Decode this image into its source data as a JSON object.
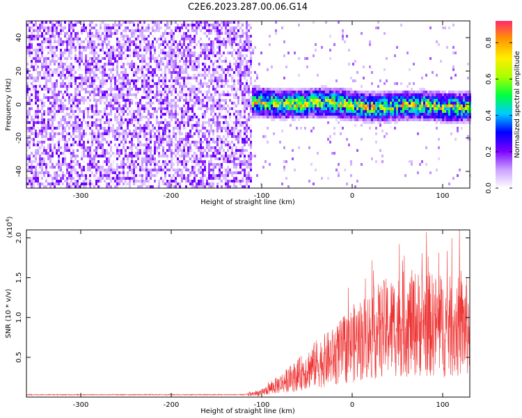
{
  "title": "C2E6.2023.287.00.06.G14",
  "chart_data": [
    {
      "type": "heatmap",
      "name": "spectrogram",
      "xlabel": "Height of straight line (km)",
      "ylabel": "Frequency (Hz)",
      "xlim": [
        -360,
        130
      ],
      "ylim": [
        -50,
        50
      ],
      "xticks": [
        -300,
        -200,
        -100,
        0,
        100
      ],
      "xtick_labels": [
        "-300",
        "-200",
        "-100",
        "0",
        "100"
      ],
      "yticks": [
        -40,
        -20,
        0,
        20,
        40
      ],
      "ytick_labels": [
        "-40",
        "-20",
        "0",
        "20",
        "40"
      ],
      "noise_region_x": [
        -360,
        -112
      ],
      "signal_region_x": [
        -112,
        130
      ],
      "signal_band_hz": [
        -8,
        8
      ],
      "signal_center_hz": 0,
      "peak_amplitude": 0.9,
      "colorbar": {
        "label": "Normalized spectral amplitude",
        "range": [
          0,
          0.92
        ],
        "ticks": [
          0.0,
          0.2,
          0.4,
          0.6,
          0.8
        ],
        "tick_labels": [
          "0.0",
          "0.2",
          "0.4",
          "0.6",
          "0.8"
        ],
        "colors": [
          "#ffffff",
          "#c9a0ff",
          "#7b00ff",
          "#0000ff",
          "#00ccff",
          "#00ff40",
          "#aaff00",
          "#ffee00",
          "#ff9900",
          "#ff2a6a"
        ]
      }
    },
    {
      "type": "line",
      "name": "snr",
      "xlabel": "Height of straight line (km)",
      "ylabel": "SNR (10 * v/v)",
      "scale_label": "(x10",
      "scale_exp": "4",
      "scale_close": ")",
      "xlim": [
        -360,
        130
      ],
      "ylim": [
        0,
        2.1
      ],
      "xticks": [
        -300,
        -200,
        -100,
        0,
        100
      ],
      "xtick_labels": [
        "-300",
        "-200",
        "-100",
        "0",
        "100"
      ],
      "yticks": [
        0.5,
        1.0,
        1.5,
        2.0
      ],
      "ytick_labels": [
        "0.5",
        "1.0",
        "1.5",
        "2.0"
      ],
      "line_color": "#ee3333",
      "envelope": [
        {
          "x": -360,
          "y": 0.03
        },
        {
          "x": -120,
          "y": 0.03
        },
        {
          "x": -100,
          "y": 0.06
        },
        {
          "x": -80,
          "y": 0.18
        },
        {
          "x": -60,
          "y": 0.3
        },
        {
          "x": -40,
          "y": 0.45
        },
        {
          "x": -20,
          "y": 0.55
        },
        {
          "x": 0,
          "y": 0.72
        },
        {
          "x": 20,
          "y": 0.85
        },
        {
          "x": 40,
          "y": 0.95
        },
        {
          "x": 60,
          "y": 1.0
        },
        {
          "x": 80,
          "y": 1.0
        },
        {
          "x": 100,
          "y": 0.95
        },
        {
          "x": 130,
          "y": 0.95
        }
      ],
      "peak": {
        "x": 82,
        "y": 2.07
      }
    }
  ]
}
